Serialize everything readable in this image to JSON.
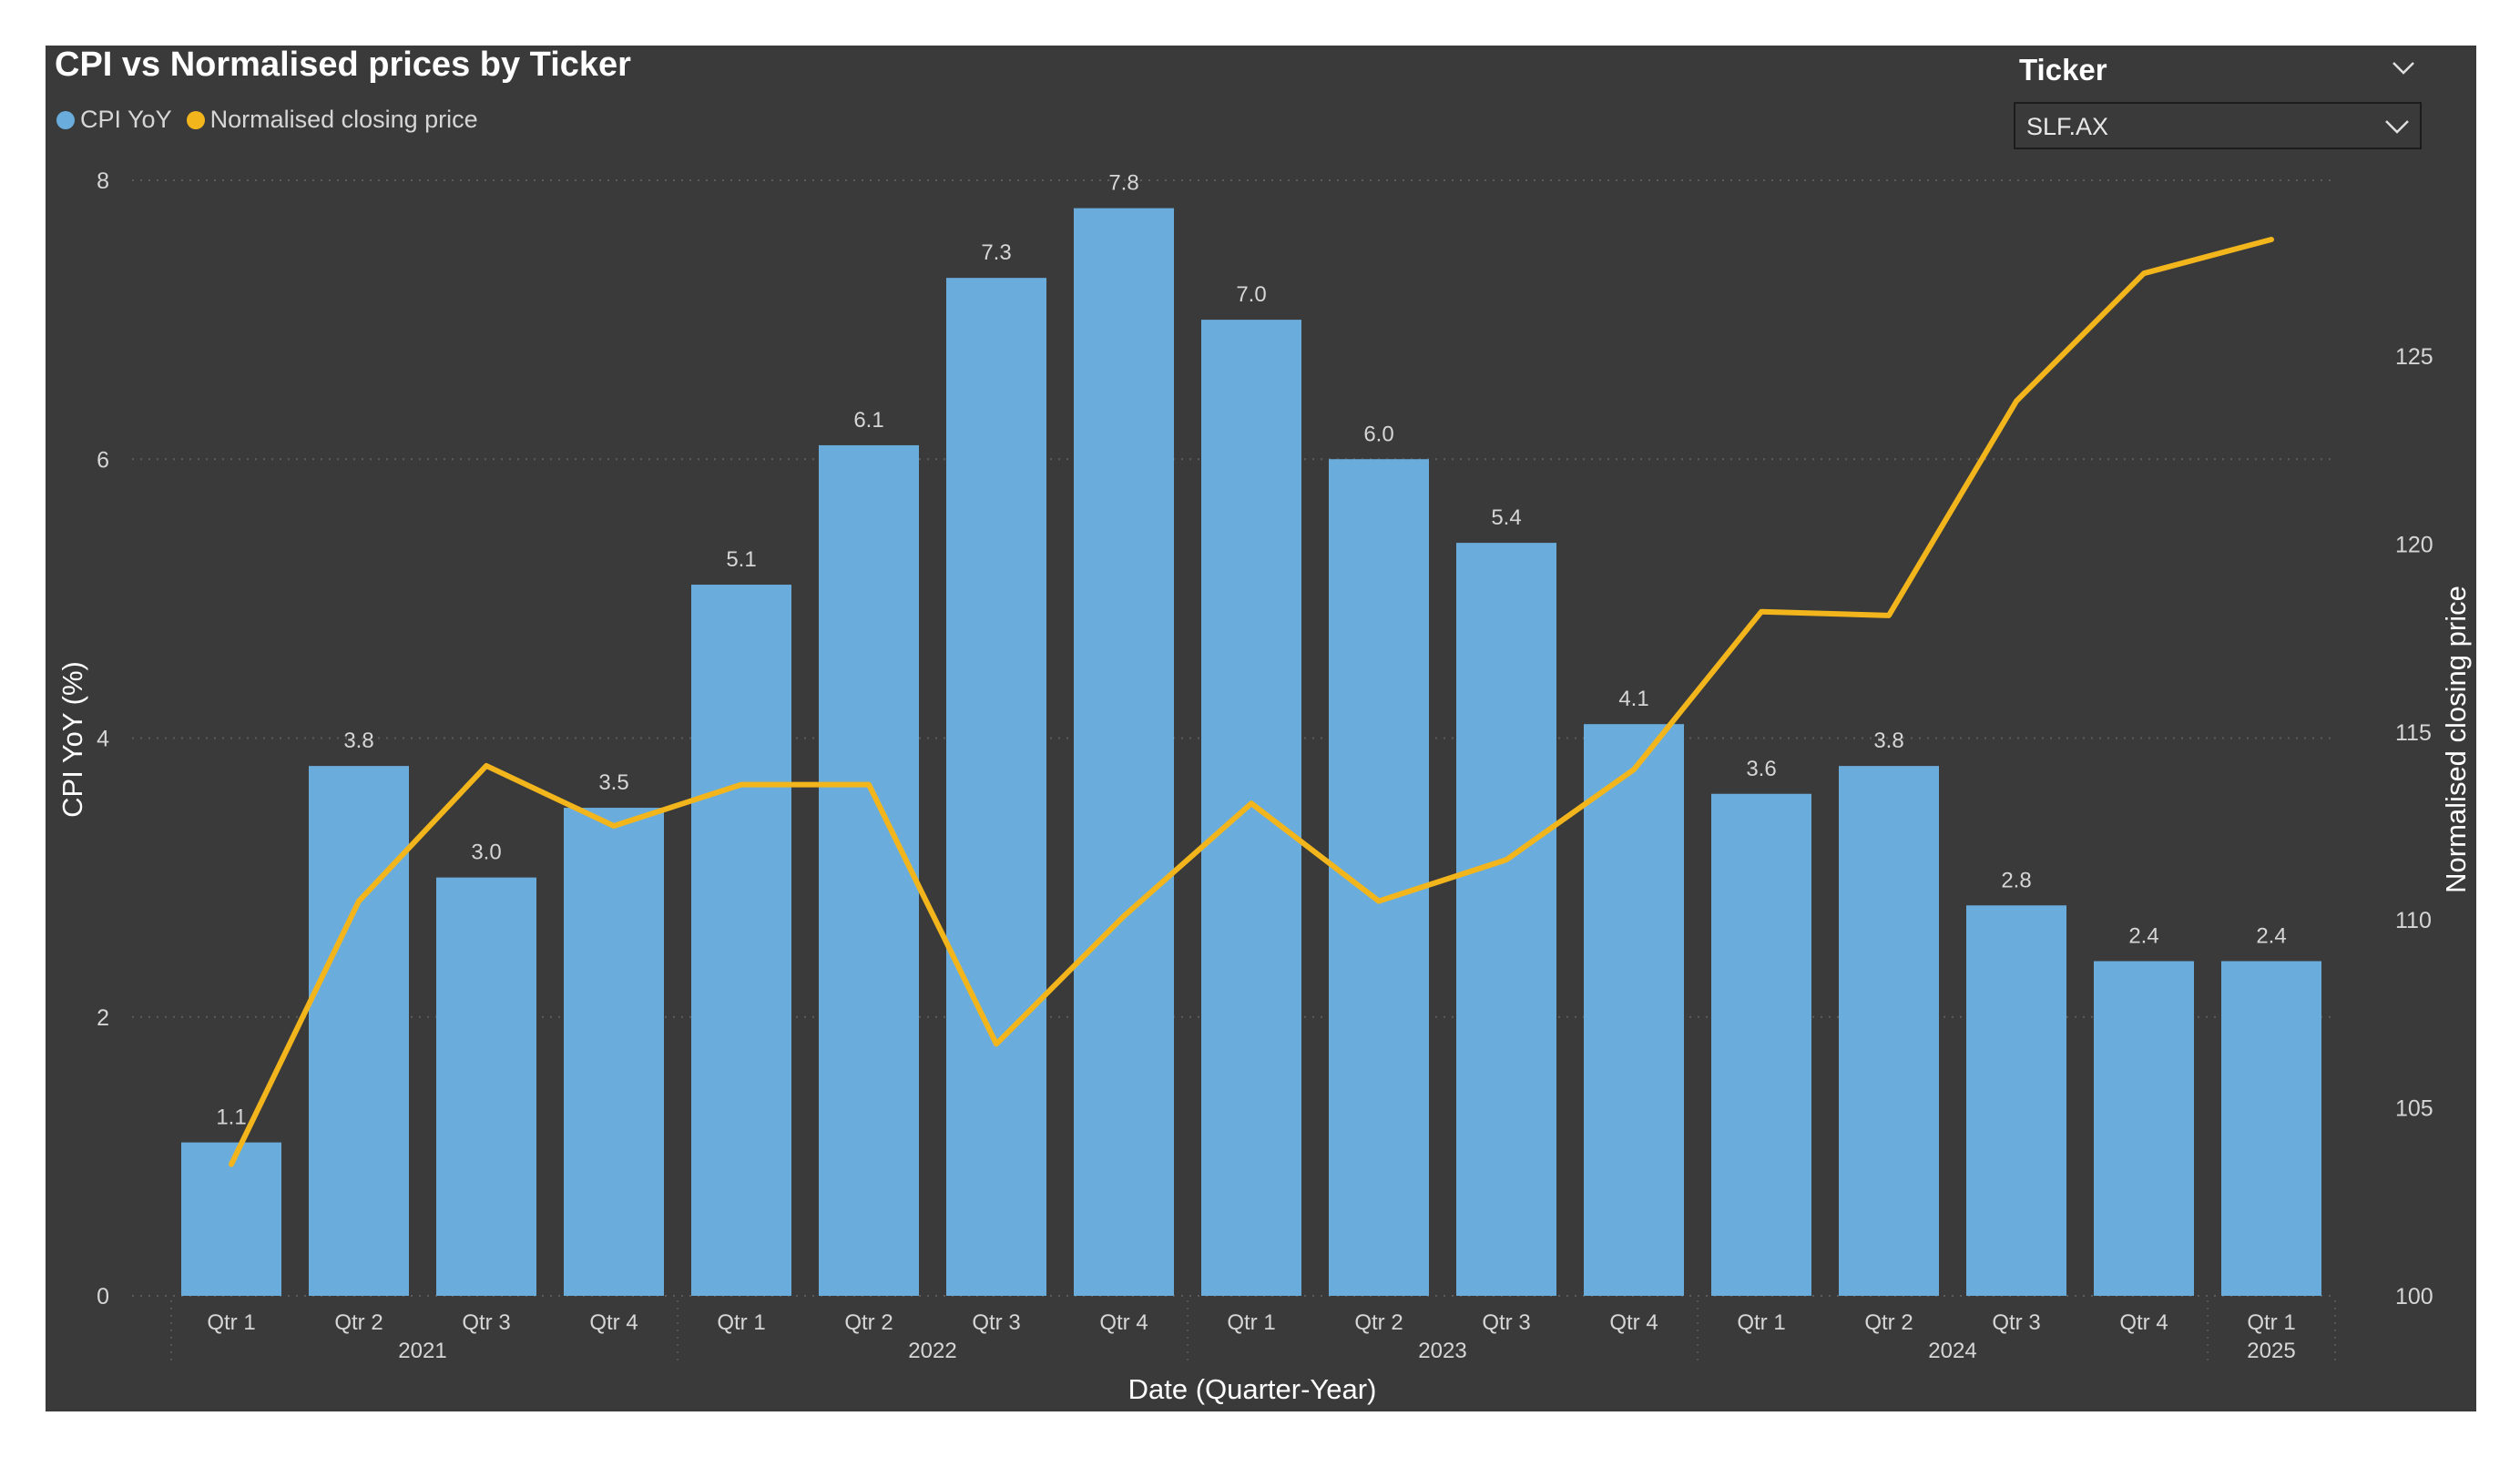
{
  "title": "CPI vs Normalised prices by Ticker",
  "slicer": {
    "title": "Ticker",
    "selected": "SLF.AX"
  },
  "colors": {
    "background": "#3a3a3a",
    "bar": "#6aaddd",
    "line": "#f2b51c",
    "text": "#d6d6d6",
    "grid": "#5c5c5c"
  },
  "chart_data": {
    "type": "bar",
    "title": "CPI vs Normalised prices by Ticker",
    "xlabel": "Date (Quarter-Year)",
    "ylabel": "CPI YoY (%)",
    "y2label": "Normalised closing price",
    "ylim": [
      0,
      8
    ],
    "y2lim": [
      100,
      130
    ],
    "yticks": [
      0,
      2,
      4,
      6,
      8
    ],
    "y2ticks": [
      100,
      105,
      110,
      115,
      120,
      125
    ],
    "grid": true,
    "legend_position": "top-left",
    "categories": [
      "Qtr 1",
      "Qtr 2",
      "Qtr 3",
      "Qtr 4",
      "Qtr 1",
      "Qtr 2",
      "Qtr 3",
      "Qtr 4",
      "Qtr 1",
      "Qtr 2",
      "Qtr 3",
      "Qtr 4",
      "Qtr 1",
      "Qtr 2",
      "Qtr 3",
      "Qtr 4",
      "Qtr 1"
    ],
    "year_groups": [
      {
        "label": "2021",
        "count": 4
      },
      {
        "label": "2022",
        "count": 4
      },
      {
        "label": "2023",
        "count": 4
      },
      {
        "label": "2024",
        "count": 4
      },
      {
        "label": "2025",
        "count": 1
      }
    ],
    "series": [
      {
        "name": "CPI YoY",
        "type": "bar",
        "axis": "left",
        "values": [
          1.1,
          3.8,
          3.0,
          3.5,
          5.1,
          6.1,
          7.3,
          7.8,
          7.0,
          6.0,
          5.4,
          4.1,
          3.6,
          3.8,
          2.8,
          2.4,
          2.4
        ],
        "labels": [
          "1.1",
          "3.8",
          "3.0",
          "3.5",
          "5.1",
          "6.1",
          "7.3",
          "7.8",
          "7.0",
          "6.0",
          "5.4",
          "4.1",
          "3.6",
          "3.8",
          "2.8",
          "2.4",
          "2.4"
        ]
      },
      {
        "name": "Normalised closing price",
        "type": "line",
        "axis": "right",
        "values": [
          103.5,
          110.5,
          114.1,
          112.5,
          113.6,
          113.6,
          106.7,
          110.1,
          113.1,
          110.5,
          111.6,
          114.0,
          118.2,
          118.1,
          123.8,
          127.2,
          128.1
        ]
      }
    ]
  }
}
